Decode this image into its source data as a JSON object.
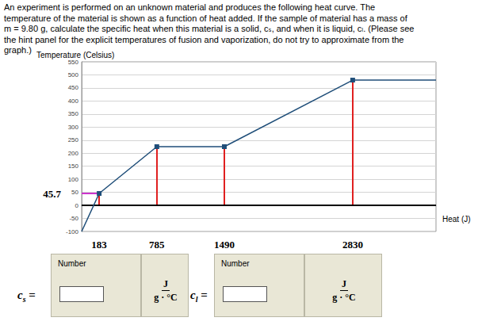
{
  "question": {
    "lines": [
      "An experiment is performed on an unknown material and produces the following heat curve. The",
      "temperature of the material is shown as a function of heat added. If the sample of material has a mass of",
      "m = 9.80 g, calculate the specific heat when this material is a solid, cₛ, and when it is liquid, cₗ. (Please see",
      "the hint panel for the explicit temperatures of fusion and vaporization, do not try to approximate from the",
      "graph.)"
    ]
  },
  "chart_data": {
    "type": "line",
    "y_label": "Temperature (Celsius)",
    "x_label": "Heat (J)",
    "x": [
      0,
      183,
      785,
      1490,
      2830,
      3700
    ],
    "values": [
      -100,
      45.7,
      225,
      225,
      480,
      480
    ],
    "color": "#1f4e79",
    "marker": "square",
    "xlim": [
      0,
      3700
    ],
    "xticks": [
      183,
      785,
      1490,
      2830
    ],
    "ylim": [
      -100,
      550
    ],
    "yticks": [
      -100,
      -50,
      0,
      50,
      100,
      150,
      200,
      250,
      300,
      350,
      400,
      450,
      500,
      550
    ],
    "grid": true,
    "annotations": [
      {
        "label": "45.7",
        "value": 45.7,
        "x": 183
      }
    ]
  },
  "answers": [
    {
      "symbol": "c",
      "subscript": "s",
      "equals": "=",
      "header": "Number",
      "unit_numerator": "J",
      "unit_denominator": "g · °C"
    },
    {
      "symbol": "c",
      "subscript": "l",
      "equals": "=",
      "header": "Number",
      "unit_numerator": "J",
      "unit_denominator": "g · °C"
    }
  ]
}
